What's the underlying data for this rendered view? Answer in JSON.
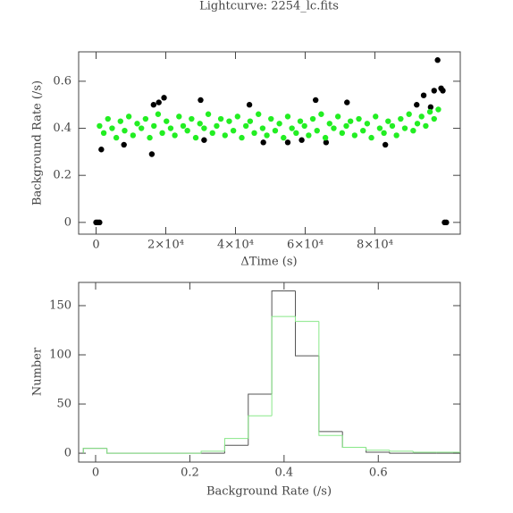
{
  "chart_data": [
    {
      "type": "scatter",
      "title": "Lightcurve: 2254_lc.fits",
      "x_label": "ΔTime (s)",
      "y_label": "Background Rate (/s)",
      "xlim": [
        -5000,
        104500
      ],
      "ylim": [
        -0.05,
        0.725
      ],
      "xticks": [
        0,
        {
          "value": 20000,
          "label": "2×10⁴"
        },
        {
          "value": 40000,
          "label": "4×10⁴"
        },
        {
          "value": 60000,
          "label": "6×10⁴"
        },
        {
          "value": 80000,
          "label": "8×10⁴"
        }
      ],
      "yticks": [
        0,
        0.2,
        0.4,
        0.6
      ],
      "series": [
        {
          "color": "#000000",
          "x": [
            0,
            500,
            1000,
            1500,
            8000,
            16000,
            16500,
            18000,
            19500,
            30000,
            31000,
            44000,
            48000,
            55000,
            59000,
            63000,
            66000,
            72000,
            83000,
            92000,
            94000,
            96000,
            97000,
            98000,
            99000,
            99500,
            100000,
            100500
          ],
          "values": [
            0,
            0,
            0,
            0.31,
            0.33,
            0.29,
            0.5,
            0.51,
            0.53,
            0.52,
            0.35,
            0.5,
            0.34,
            0.34,
            0.35,
            0.52,
            0.34,
            0.51,
            0.33,
            0.5,
            0.54,
            0.49,
            0.56,
            0.69,
            0.57,
            0.56,
            0,
            0
          ]
        },
        {
          "color": "#22ee22",
          "x": [
            1000,
            2200,
            3400,
            4600,
            5800,
            7000,
            8200,
            9400,
            10600,
            11800,
            13000,
            14200,
            15400,
            16600,
            17800,
            19000,
            20200,
            21400,
            22600,
            23800,
            25000,
            26200,
            27400,
            28600,
            29800,
            31000,
            32200,
            33400,
            34600,
            35800,
            37000,
            38200,
            39400,
            40600,
            41800,
            43000,
            44200,
            45400,
            46600,
            47800,
            49000,
            50200,
            51400,
            52600,
            53800,
            55000,
            56200,
            57400,
            58600,
            59800,
            61000,
            62200,
            63400,
            64600,
            65800,
            67000,
            68200,
            69400,
            70600,
            71800,
            73000,
            74200,
            75400,
            76600,
            77800,
            79000,
            80200,
            81400,
            82600,
            83800,
            85000,
            86200,
            87400,
            88600,
            89800,
            91000,
            92200,
            93400,
            94600,
            95800,
            97000,
            98200
          ],
          "values": [
            0.41,
            0.38,
            0.44,
            0.4,
            0.36,
            0.43,
            0.39,
            0.45,
            0.37,
            0.42,
            0.4,
            0.44,
            0.36,
            0.41,
            0.46,
            0.38,
            0.43,
            0.4,
            0.37,
            0.45,
            0.41,
            0.39,
            0.44,
            0.36,
            0.42,
            0.4,
            0.46,
            0.38,
            0.41,
            0.44,
            0.37,
            0.43,
            0.39,
            0.45,
            0.36,
            0.41,
            0.43,
            0.38,
            0.46,
            0.4,
            0.37,
            0.44,
            0.39,
            0.42,
            0.36,
            0.45,
            0.4,
            0.38,
            0.43,
            0.41,
            0.37,
            0.44,
            0.39,
            0.46,
            0.36,
            0.42,
            0.4,
            0.45,
            0.38,
            0.41,
            0.43,
            0.37,
            0.44,
            0.39,
            0.42,
            0.36,
            0.45,
            0.4,
            0.38,
            0.43,
            0.41,
            0.37,
            0.44,
            0.4,
            0.46,
            0.39,
            0.42,
            0.45,
            0.41,
            0.47,
            0.44,
            0.48
          ]
        }
      ]
    },
    {
      "type": "histogram",
      "x_label": "Background Rate (/s)",
      "y_label": "Number",
      "xlim": [
        -0.036,
        0.774
      ],
      "ylim": [
        -9,
        173.6
      ],
      "xticks": [
        0,
        0.2,
        0.4,
        0.6
      ],
      "yticks": [
        0,
        50,
        100,
        150
      ],
      "bins": [
        -0.026,
        0.024,
        0.074,
        0.124,
        0.174,
        0.224,
        0.274,
        0.324,
        0.374,
        0.424,
        0.474,
        0.524,
        0.574,
        0.624,
        0.674,
        0.724,
        0.774
      ],
      "series": [
        {
          "color": "#555555",
          "values": [
            5,
            0,
            0,
            0,
            0,
            0,
            8,
            60,
            165,
            99,
            22,
            6,
            1,
            0,
            0,
            0
          ]
        },
        {
          "color": "#88e888",
          "values": [
            5,
            0,
            0,
            0,
            0,
            2,
            15,
            38,
            139,
            134,
            18,
            6,
            3,
            2,
            1,
            1
          ]
        }
      ]
    }
  ]
}
